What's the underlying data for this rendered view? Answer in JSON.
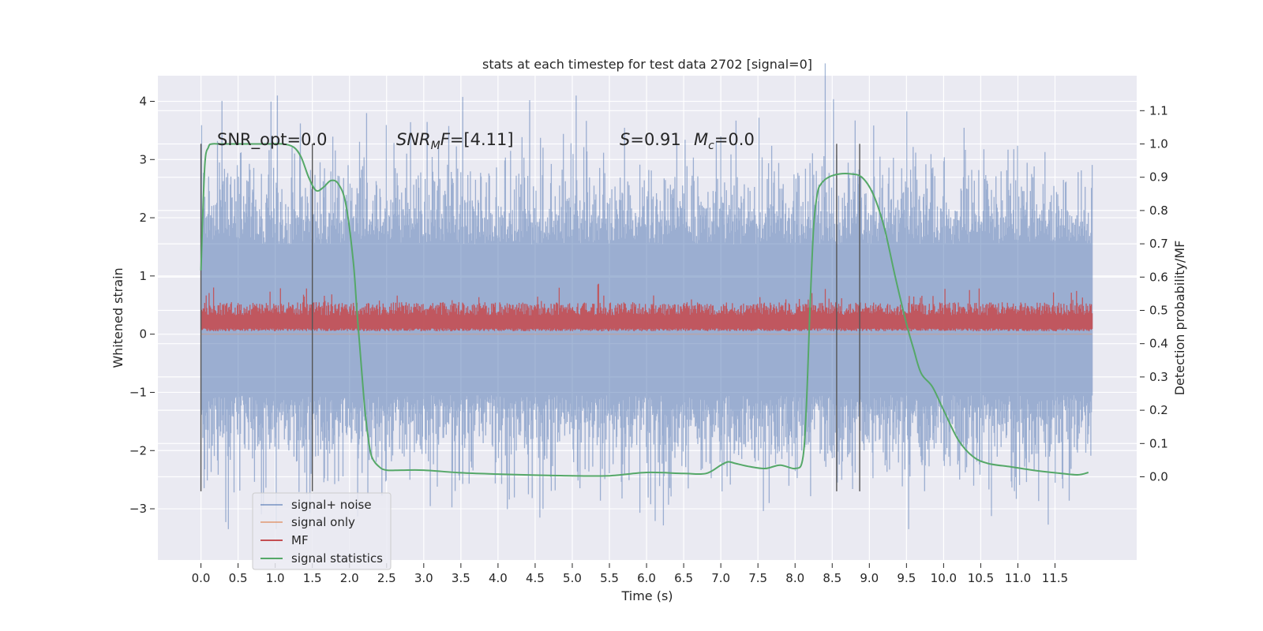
{
  "chart_data": {
    "type": "line",
    "title": "stats at each timestep for test data 2702 [signal=0]",
    "xlabel": "Time (s)",
    "ylabel": "Whitened strain",
    "y2label": "Detection probability/MF",
    "xlim": [
      -0.58,
      12.6
    ],
    "ylim": [
      -3.88,
      4.44
    ],
    "y2lim": [
      -0.25,
      1.205
    ],
    "grid": true,
    "legend_position": "lower-left",
    "x_ticks": [
      "0.0",
      "0.5",
      "1.0",
      "1.5",
      "2.0",
      "2.5",
      "3.0",
      "3.5",
      "4.0",
      "4.5",
      "5.0",
      "5.5",
      "6.0",
      "6.5",
      "7.0",
      "7.5",
      "8.0",
      "8.5",
      "9.0",
      "9.5",
      "10.0",
      "10.5",
      "11.0",
      "11.5"
    ],
    "y_ticks": [
      "4",
      "3",
      "2",
      "1",
      "0",
      "−1",
      "−2",
      "−3"
    ],
    "y2_ticks": [
      "1.1",
      "1.0",
      "0.9",
      "0.8",
      "0.7",
      "0.6",
      "0.5",
      "0.4",
      "0.3",
      "0.2",
      "0.1",
      "0.0"
    ],
    "annotations": {
      "snr_opt": "SNR_opt=0.0",
      "snr_mf_main": "SNR",
      "snr_mf_sub": "M",
      "snr_mf_var": "F",
      "snr_mf_value": "=[4.11]",
      "s_var": "S",
      "s_value": "=0.91",
      "mc_var": "M",
      "mc_sub": "c",
      "mc_value": "=0.0"
    },
    "vlines": [
      0.0,
      1.5,
      8.56,
      8.87
    ],
    "vline_range": [
      -2.7,
      3.27
    ],
    "series": [
      {
        "name": "signal+ noise",
        "color": "#4c72b0",
        "axis": "left",
        "description_of_shape": "dense noise between about -2.6 and 3.3 with spikes to 4.1",
        "envelope": {
          "t_start": 0.0,
          "t_end": 12.0,
          "typical_low": -1.6,
          "typical_high": 2.1,
          "peak_low": -3.35,
          "peak_high": 4.1
        }
      },
      {
        "name": "signal only",
        "color": "#dd8452",
        "axis": "left",
        "values_constant": 0.0
      },
      {
        "name": "MF",
        "color": "#c44e52",
        "axis": "left",
        "envelope": {
          "t_start": 0.0,
          "t_end": 12.0,
          "typical_low": 0.05,
          "typical_high": 0.55,
          "peak_low": -0.02,
          "peak_high": 1.0
        }
      },
      {
        "name": "signal statistics",
        "color": "#55a868",
        "axis": "right",
        "x": [
          0.0,
          0.05,
          0.1,
          0.15,
          0.25,
          0.4,
          0.6,
          0.9,
          1.1,
          1.25,
          1.35,
          1.45,
          1.55,
          1.65,
          1.75,
          1.85,
          1.95,
          2.05,
          2.1,
          2.15,
          2.2,
          2.25,
          2.3,
          2.4,
          2.5,
          2.7,
          3.0,
          3.5,
          4.0,
          4.5,
          5.0,
          5.5,
          6.0,
          6.5,
          6.8,
          7.0,
          7.1,
          7.2,
          7.4,
          7.6,
          7.8,
          8.0,
          8.1,
          8.15,
          8.2,
          8.25,
          8.3,
          8.35,
          8.45,
          8.6,
          8.75,
          8.9,
          9.05,
          9.2,
          9.35,
          9.5,
          9.6,
          9.7,
          9.85,
          10.0,
          10.2,
          10.4,
          10.6,
          10.9,
          11.2,
          11.5,
          11.8,
          11.95
        ],
        "values": [
          0.62,
          0.93,
          0.99,
          1.0,
          1.0,
          1.0,
          1.0,
          1.0,
          1.0,
          0.99,
          0.96,
          0.9,
          0.86,
          0.87,
          0.89,
          0.88,
          0.82,
          0.65,
          0.5,
          0.36,
          0.22,
          0.12,
          0.06,
          0.03,
          0.02,
          0.02,
          0.02,
          0.012,
          0.008,
          0.005,
          0.003,
          0.003,
          0.013,
          0.01,
          0.01,
          0.035,
          0.045,
          0.04,
          0.03,
          0.025,
          0.035,
          0.025,
          0.05,
          0.2,
          0.5,
          0.75,
          0.85,
          0.88,
          0.9,
          0.91,
          0.91,
          0.9,
          0.85,
          0.75,
          0.6,
          0.46,
          0.38,
          0.31,
          0.27,
          0.2,
          0.11,
          0.06,
          0.04,
          0.03,
          0.02,
          0.012,
          0.006,
          0.013
        ]
      }
    ]
  }
}
